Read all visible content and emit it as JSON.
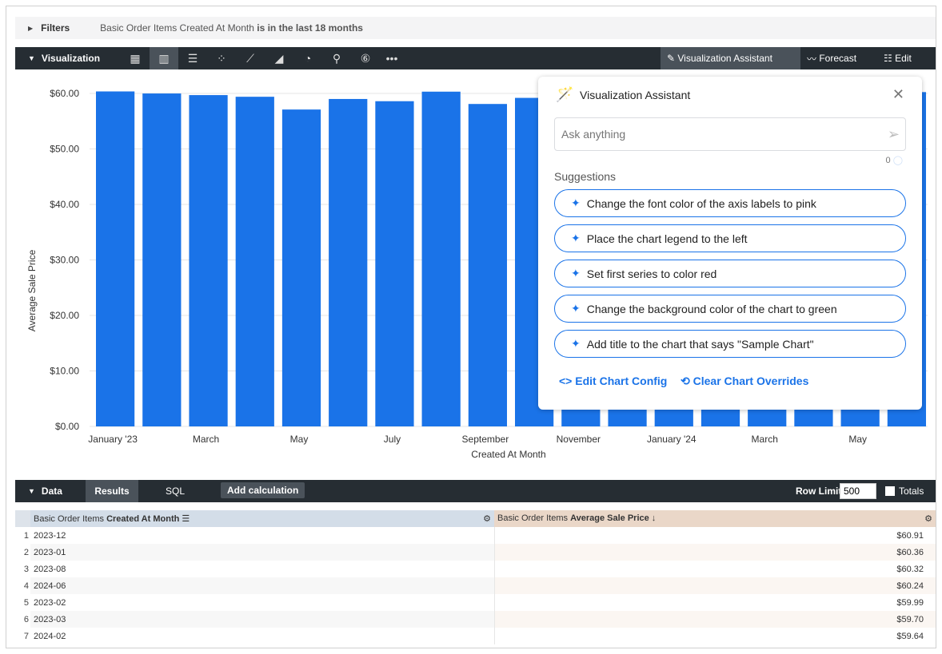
{
  "filters": {
    "label": "Filters",
    "description_pre": "Basic Order Items Created At Month ",
    "description_bold": "is in the last 18 months"
  },
  "visualization": {
    "label": "Visualization",
    "icons": [
      "table-icon",
      "bar-chart-icon",
      "horizontal-bar-icon",
      "scatter-icon",
      "line-chart-icon",
      "area-chart-icon",
      "pie-chart-icon",
      "map-pin-icon",
      "single-value-icon",
      "more-icon"
    ],
    "assistant_label": "Visualization Assistant",
    "forecast_label": "Forecast",
    "edit_label": "Edit"
  },
  "chart_data": {
    "type": "bar",
    "xlabel": "Created At Month",
    "ylabel": "Average Sale Price",
    "ylim": [
      0,
      65
    ],
    "yticks": [
      "$0.00",
      "$10.00",
      "$20.00",
      "$30.00",
      "$40.00",
      "$50.00",
      "$60.00"
    ],
    "categories": [
      "2023-01",
      "2023-02",
      "2023-03",
      "2023-04",
      "2023-05",
      "2023-06",
      "2023-07",
      "2023-08",
      "2023-09",
      "2023-10",
      "2023-11",
      "2023-12",
      "2024-01",
      "2024-02",
      "2024-03",
      "2024-04",
      "2024-05",
      "2024-06"
    ],
    "xtick_labels": [
      "January '23",
      "",
      "March",
      "",
      "May",
      "",
      "July",
      "",
      "September",
      "",
      "November",
      "",
      "January '24",
      "",
      "March",
      "",
      "May",
      ""
    ],
    "values": [
      60.36,
      59.99,
      59.7,
      59.4,
      57.1,
      59.0,
      58.6,
      60.32,
      58.1,
      59.2,
      59.0,
      60.91,
      59.0,
      59.64,
      59.0,
      59.0,
      59.0,
      60.24
    ],
    "color": "#1a73e8",
    "grid": true
  },
  "assistant": {
    "title": "Visualization Assistant",
    "placeholder": "Ask anything",
    "count": "0",
    "suggestions_label": "Suggestions",
    "suggestions": [
      "Change the font color of the axis labels to pink",
      "Place the chart legend to the left",
      "Set first series to color red",
      "Change the background color of the chart to green",
      "Add title to the chart that says \"Sample Chart\""
    ],
    "edit_config": "Edit Chart Config",
    "clear_overrides": "Clear Chart Overrides"
  },
  "data": {
    "label": "Data",
    "tabs": [
      "Results",
      "SQL"
    ],
    "add_calc": "Add calculation",
    "row_limit_label": "Row Limit",
    "row_limit": "500",
    "totals": "Totals",
    "col1_pre": "Basic Order Items ",
    "col1_bold": "Created At Month",
    "col2_pre": "Basic Order Items ",
    "col2_bold": "Average Sale Price ↓",
    "rows": [
      [
        "1",
        "2023-12",
        "$60.91"
      ],
      [
        "2",
        "2023-01",
        "$60.36"
      ],
      [
        "3",
        "2023-08",
        "$60.32"
      ],
      [
        "4",
        "2024-06",
        "$60.24"
      ],
      [
        "5",
        "2023-02",
        "$59.99"
      ],
      [
        "6",
        "2023-03",
        "$59.70"
      ],
      [
        "7",
        "2024-02",
        "$59.64"
      ]
    ]
  }
}
